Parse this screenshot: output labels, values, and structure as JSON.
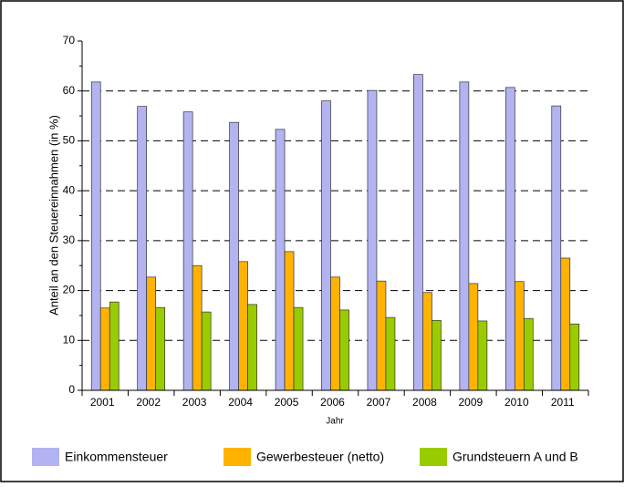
{
  "chart_data": {
    "type": "bar",
    "x_label": "Jahr",
    "y_label": "Anteil an den Steuereinnahmen (in %)",
    "categories": [
      "2001",
      "2002",
      "2003",
      "2004",
      "2005",
      "2006",
      "2007",
      "2008",
      "2009",
      "2010",
      "2011"
    ],
    "series": [
      {
        "name": "Einkommensteuer",
        "color": "#b3b3f2",
        "values": [
          61.8,
          56.9,
          55.8,
          53.7,
          52.3,
          58.0,
          60.1,
          63.3,
          61.8,
          60.7,
          57.0
        ]
      },
      {
        "name": "Gewerbesteuer (netto)",
        "color": "#ffb300",
        "values": [
          16.5,
          22.7,
          25.0,
          25.8,
          27.8,
          22.7,
          21.9,
          19.6,
          21.4,
          21.8,
          26.5
        ]
      },
      {
        "name": "Grundsteuern A und B",
        "color": "#99cc00",
        "values": [
          17.7,
          16.6,
          15.7,
          17.2,
          16.6,
          16.1,
          14.6,
          14.0,
          13.9,
          14.4,
          13.3
        ]
      }
    ],
    "ylim": [
      0,
      70
    ],
    "yticks": [
      0,
      10,
      20,
      30,
      40,
      50,
      60,
      70
    ],
    "grid": true,
    "legend": "bottom"
  }
}
